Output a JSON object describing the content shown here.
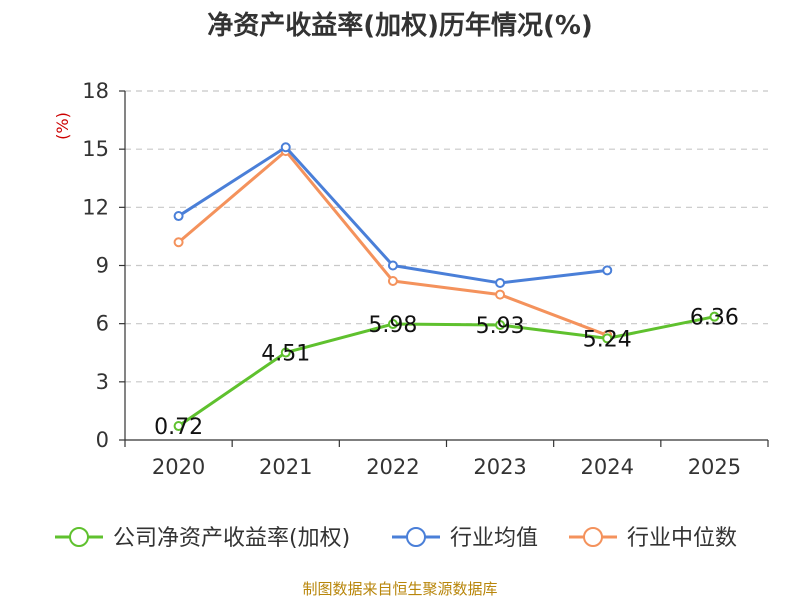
{
  "chart_data": {
    "type": "line",
    "title": "净资产收益率(加权)历年情况(%)",
    "ylabel": "(%)",
    "xlabel": "",
    "categories": [
      "2020",
      "2021",
      "2022",
      "2023",
      "2024",
      "2025"
    ],
    "ylim": [
      0,
      18
    ],
    "yticks": [
      0,
      3,
      6,
      9,
      12,
      15,
      18
    ],
    "grid": true,
    "legend_position": "bottom",
    "series": [
      {
        "name": "公司净资产收益率(加权)",
        "color": "#5fc12e",
        "values": [
          0.72,
          4.51,
          5.98,
          5.93,
          5.24,
          6.36
        ],
        "show_labels": true
      },
      {
        "name": "行业均值",
        "color": "#4a7fd8",
        "values": [
          11.55,
          15.1,
          9.0,
          8.1,
          8.75,
          null
        ],
        "show_labels": false
      },
      {
        "name": "行业中位数",
        "color": "#f4925c",
        "values": [
          10.2,
          14.9,
          8.2,
          7.5,
          5.4,
          null
        ],
        "show_labels": false
      }
    ],
    "data_labels": [
      "0.72",
      "4.51",
      "5.98",
      "5.93",
      "5.24",
      "6.36"
    ]
  },
  "source": "制图数据来自恒生聚源数据库"
}
